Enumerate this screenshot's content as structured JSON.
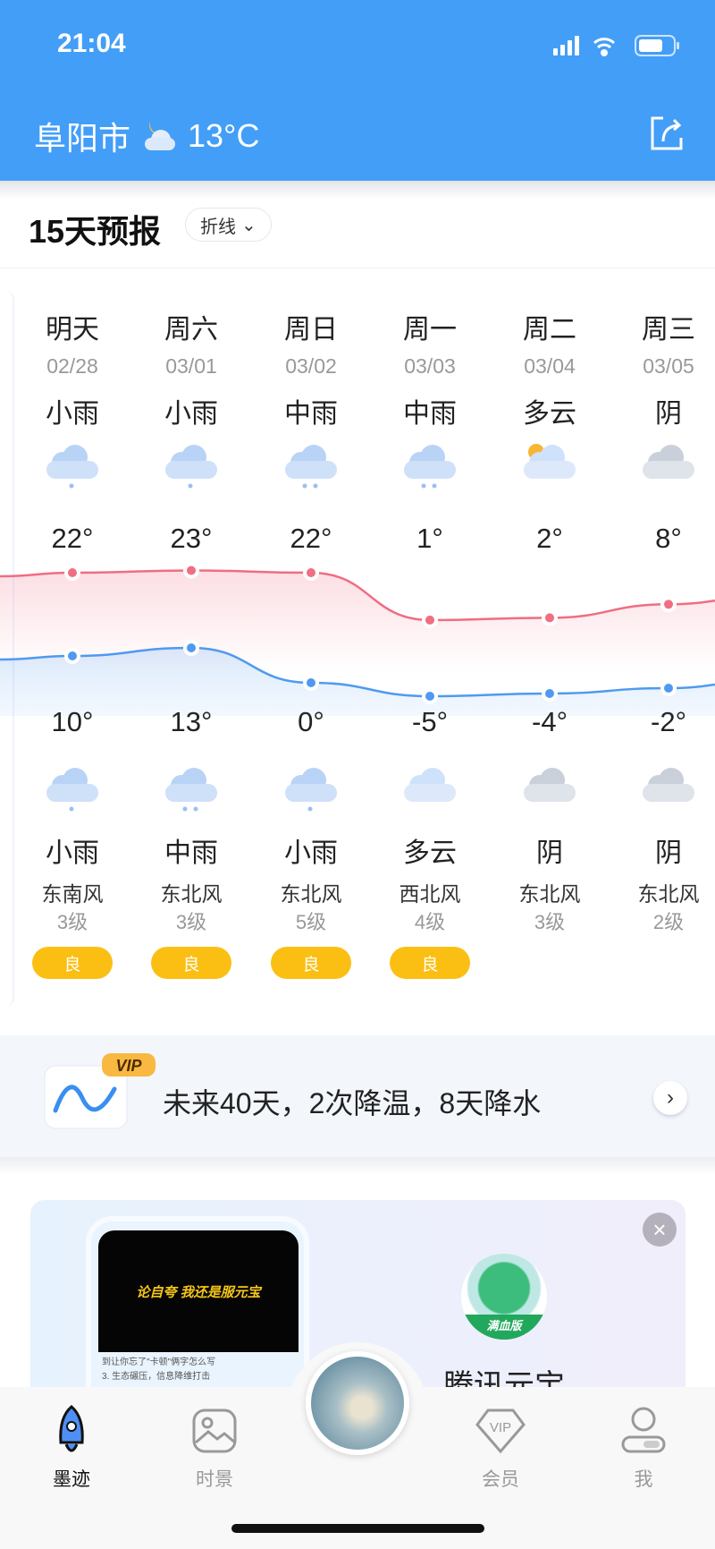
{
  "status_bar": {
    "time": "21:04"
  },
  "header": {
    "city": "阜阳市",
    "current_temp": "13°C",
    "weather_icon": "partly-cloudy-night-icon",
    "share_icon": "share-icon",
    "color": "#439ef7"
  },
  "forecast": {
    "title": "15天预报",
    "view_mode": "折线",
    "days": [
      {
        "day": "明天",
        "date": "02/28",
        "day_weather": "小雨",
        "day_icon": "light-rain-icon",
        "high": "22°",
        "low": "10°",
        "night_weather": "小雨",
        "night_icon": "light-rain-icon",
        "wind": "东南风",
        "level": "3级",
        "aqi": "良"
      },
      {
        "day": "周六",
        "date": "03/01",
        "day_weather": "小雨",
        "day_icon": "light-rain-icon",
        "high": "23°",
        "low": "13°",
        "night_weather": "中雨",
        "night_icon": "moderate-rain-icon",
        "wind": "东北风",
        "level": "3级",
        "aqi": "良"
      },
      {
        "day": "周日",
        "date": "03/02",
        "day_weather": "中雨",
        "day_icon": "moderate-rain-icon",
        "high": "22°",
        "low": "0°",
        "night_weather": "小雨",
        "night_icon": "light-rain-icon",
        "wind": "东北风",
        "level": "5级",
        "aqi": "良"
      },
      {
        "day": "周一",
        "date": "03/03",
        "day_weather": "中雨",
        "day_icon": "moderate-rain-icon",
        "high": "1°",
        "low": "-5°",
        "night_weather": "多云",
        "night_icon": "partly-cloudy-night-icon",
        "wind": "西北风",
        "level": "4级",
        "aqi": "良"
      },
      {
        "day": "周二",
        "date": "03/04",
        "day_weather": "多云",
        "day_icon": "partly-cloudy-day-icon",
        "high": "2°",
        "low": "-4°",
        "night_weather": "阴",
        "night_icon": "overcast-icon",
        "wind": "东北风",
        "level": "3级",
        "aqi": ""
      },
      {
        "day": "周三",
        "date": "03/05",
        "day_weather": "阴",
        "day_icon": "overcast-icon",
        "high": "8°",
        "low": "-2°",
        "night_weather": "阴",
        "night_icon": "overcast-icon",
        "wind": "东北风",
        "level": "2级",
        "aqi": ""
      }
    ],
    "high_color": "#f06d82",
    "low_color": "#4f9af0",
    "aqi_color": "#fbbf14"
  },
  "chart_data": {
    "type": "line",
    "categories": [
      "02/28",
      "03/01",
      "03/02",
      "03/03",
      "03/04",
      "03/05"
    ],
    "series": [
      {
        "values": [
          22,
          23,
          22,
          1,
          2,
          8
        ]
      },
      {
        "values": [
          10,
          13,
          0,
          -5,
          -4,
          -2
        ]
      }
    ]
  },
  "vip_banner": {
    "badge": "VIP",
    "text": "未来40天，2次降温，8天降水"
  },
  "ad": {
    "headline": "论自夸 我还是服元宝",
    "line1": "到让你忘了\"卡顿\"俩字怎么写",
    "line2": "3. 生态碾压，信息降维打击",
    "badge": "满血版",
    "name": "腾讯元宝"
  },
  "tabbar": {
    "items": [
      {
        "label": "墨迹",
        "icon": "rocket-icon"
      },
      {
        "label": "时景",
        "icon": "image-icon"
      },
      {
        "label": "会员",
        "icon": "vip-diamond-icon"
      },
      {
        "label": "我",
        "icon": "user-icon"
      }
    ]
  }
}
